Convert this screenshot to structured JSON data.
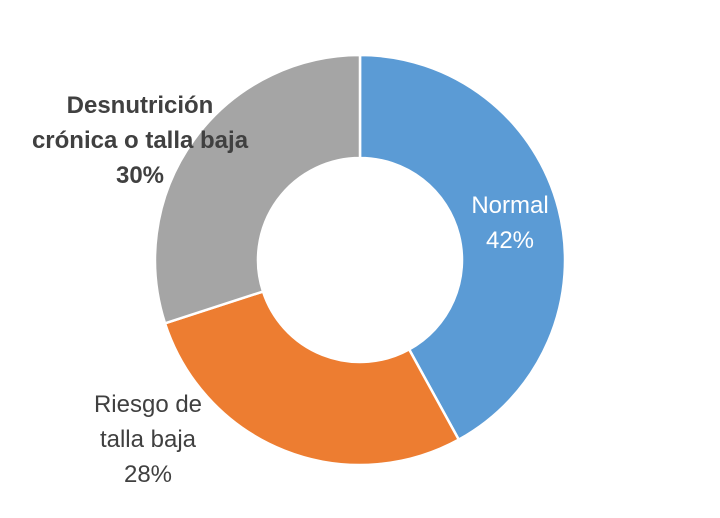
{
  "chart_data": {
    "type": "pie",
    "variant": "donut",
    "title": "",
    "slices": [
      {
        "name": "Normal",
        "value": 42,
        "label_lines": [
          "Normal",
          "42%"
        ],
        "color": "#5b9bd5",
        "label_color": "#ffffff",
        "label_bold": false
      },
      {
        "name": "Riesgo de talla baja",
        "value": 28,
        "label_lines": [
          "Riesgo de",
          "talla baja",
          "28%"
        ],
        "color": "#ed7d31",
        "label_color": "#404040",
        "label_bold": false
      },
      {
        "name": "Desnutrición crónica o talla baja",
        "value": 30,
        "label_lines": [
          "Desnutrición",
          "crónica o talla baja",
          "30%"
        ],
        "color": "#a5a5a5",
        "label_color": "#404040",
        "label_bold": true
      }
    ],
    "legend": "none",
    "start_angle": "12 o'clock",
    "direction": "clockwise",
    "separator_color": "#ffffff"
  }
}
